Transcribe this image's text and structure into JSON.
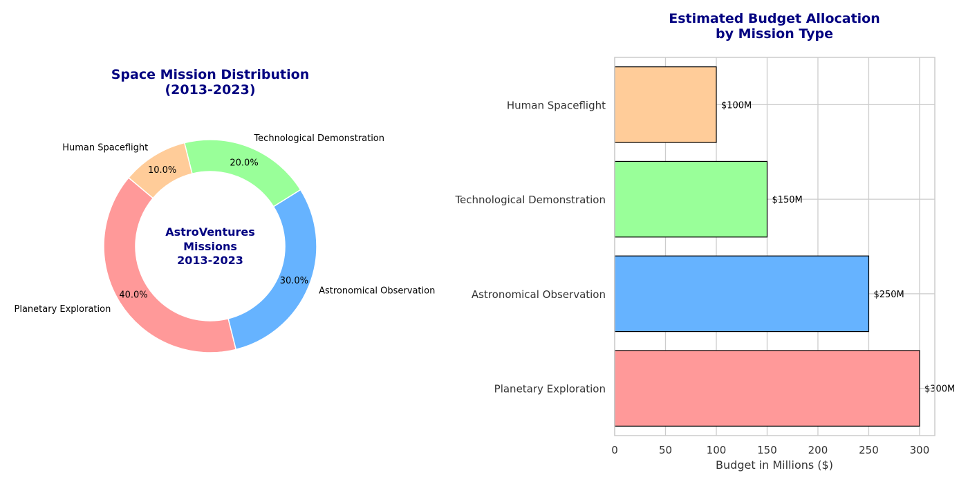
{
  "chart_data": [
    {
      "type": "pie",
      "title_lines": [
        "Space Mission Distribution",
        "(2013-2023)"
      ],
      "center_text_lines": [
        "AstroVentures",
        "Missions",
        "2013-2023"
      ],
      "slices": [
        {
          "label": "Planetary Exploration",
          "value": 40,
          "pct_label": "40.0%",
          "color": "#ff9999"
        },
        {
          "label": "Astronomical Observation",
          "value": 30,
          "pct_label": "30.0%",
          "color": "#66b3ff"
        },
        {
          "label": "Technological Demonstration",
          "value": 20,
          "pct_label": "20.0%",
          "color": "#99ff99"
        },
        {
          "label": "Human Spaceflight",
          "value": 10,
          "pct_label": "10.0%",
          "color": "#ffcc99"
        }
      ],
      "donut": true
    },
    {
      "type": "bar",
      "orientation": "horizontal",
      "title_lines": [
        "Estimated Budget Allocation",
        "by Mission Type"
      ],
      "categories": [
        "Planetary Exploration",
        "Astronomical Observation",
        "Technological Demonstration",
        "Human Spaceflight"
      ],
      "values": [
        300,
        250,
        150,
        100
      ],
      "value_labels": [
        "$300M",
        "$250M",
        "$150M",
        "$100M"
      ],
      "colors": [
        "#ff9999",
        "#66b3ff",
        "#99ff99",
        "#ffcc99"
      ],
      "xlabel": "Budget in Millions ($)",
      "ylabel": "",
      "xlim": [
        0,
        315
      ],
      "xticks": [
        0,
        50,
        100,
        150,
        200,
        250,
        300
      ],
      "grid": true
    }
  ]
}
